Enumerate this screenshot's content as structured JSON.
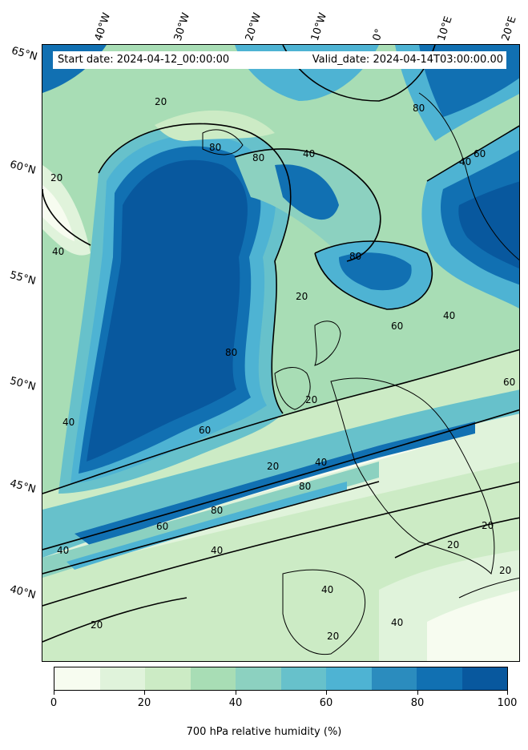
{
  "map": {
    "header": {
      "start_date": "Start date: 2024-04-12_00:00:00",
      "valid_date": "Valid_date: 2024-04-14T03:00:00.00"
    },
    "lon_labels": [
      "40°W",
      "30°W",
      "20°W",
      "10°W",
      "0°",
      "10°E",
      "20°E"
    ],
    "lat_labels": [
      "65°N",
      "60°N",
      "55°N",
      "50°N",
      "45°N",
      "40°N"
    ],
    "contour_labels": [
      "20",
      "40",
      "60",
      "80"
    ],
    "colors": {
      "land_outline": "#000000",
      "levels": [
        "#f7fcf0",
        "#e0f3db",
        "#ccebc5",
        "#a8ddb5",
        "#8cd1c0",
        "#67c1cb",
        "#4eb3d3",
        "#2b8cbe",
        "#1170b2",
        "#08589e"
      ]
    }
  },
  "colorbar": {
    "ticks": [
      "0",
      "20",
      "40",
      "60",
      "80",
      "100"
    ],
    "label": "700 hPa relative humidity (%)"
  }
}
